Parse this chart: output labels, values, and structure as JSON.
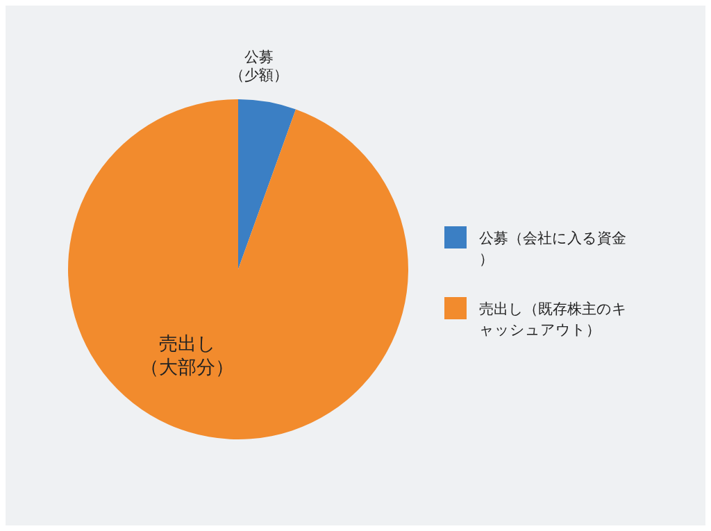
{
  "chart_data": {
    "type": "pie",
    "categories": [
      "公募（会社に入る資金）",
      "売出し（既存株主のキャッシュアウト）"
    ],
    "values": [
      5.5,
      94.5
    ],
    "colors": [
      "#3b7fc4",
      "#f28b2d"
    ],
    "annotations": [
      "公募（少額）",
      "売出し（大部分）"
    ],
    "legend": "right"
  }
}
